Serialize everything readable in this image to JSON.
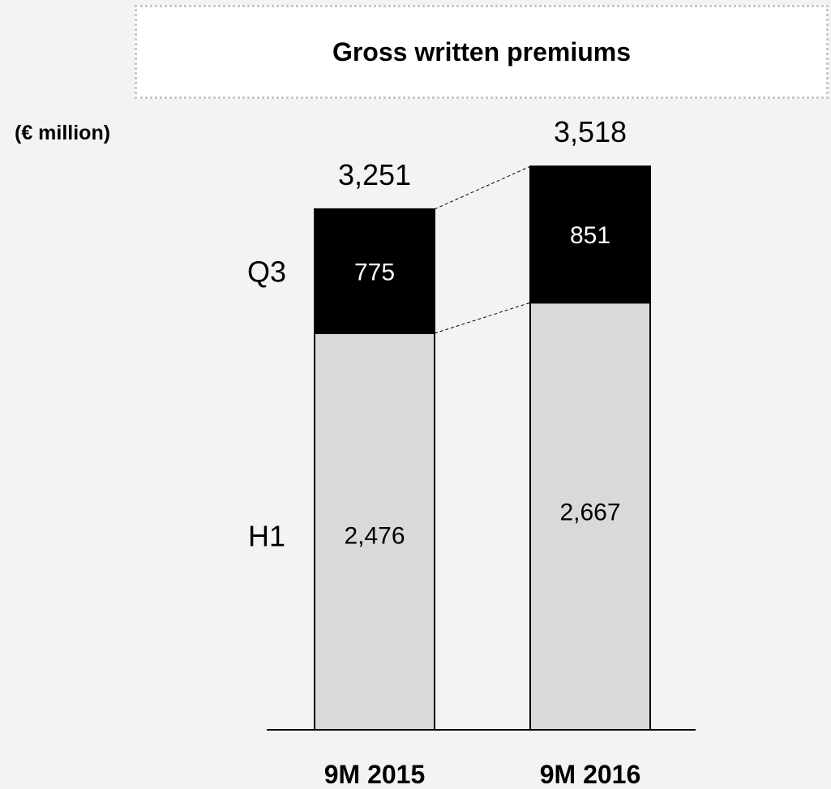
{
  "title": "Gross written premiums",
  "unit_label": "(€ million)",
  "chart_data": {
    "type": "bar",
    "stacked": true,
    "categories": [
      "9M 2015",
      "9M 2016"
    ],
    "series": [
      {
        "name": "H1",
        "values": [
          2476,
          2667
        ],
        "color": "#d9d9d9",
        "label_color": "#000000"
      },
      {
        "name": "Q3",
        "values": [
          775,
          851
        ],
        "color": "#000000",
        "label_color": "#ffffff"
      }
    ],
    "totals": [
      "3,251",
      "3,518"
    ],
    "segment_labels": [
      [
        "2,476",
        "2,667"
      ],
      [
        "775",
        "851"
      ]
    ],
    "ylim": [
      0,
      3700
    ],
    "grid": false,
    "connector_lines": true
  }
}
